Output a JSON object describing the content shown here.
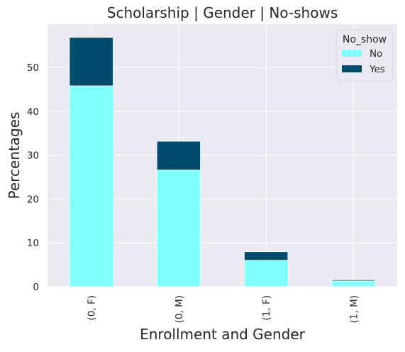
{
  "chart_data": {
    "type": "bar",
    "stacked": true,
    "title": "Scholarship | Gender | No-shows",
    "xlabel": "Enrollment and Gender",
    "ylabel": "Percentages",
    "categories": [
      "(0, F)",
      "(0, M)",
      "(1, F)",
      "(1, M)"
    ],
    "series": [
      {
        "name": "No",
        "values": [
          45.8,
          26.6,
          6.0,
          1.3
        ],
        "color": "#80ffff"
      },
      {
        "name": "Yes",
        "values": [
          11.1,
          6.6,
          2.0,
          0.3
        ],
        "color": "#004c6d"
      }
    ],
    "ylim": [
      0,
      59.9
    ],
    "yticks": [
      0,
      10,
      20,
      30,
      40,
      50
    ],
    "legend": {
      "title": "No_show",
      "position": "top-right"
    },
    "grid": true,
    "background": "#eaeaf2",
    "grid_color": "#ffffff"
  }
}
